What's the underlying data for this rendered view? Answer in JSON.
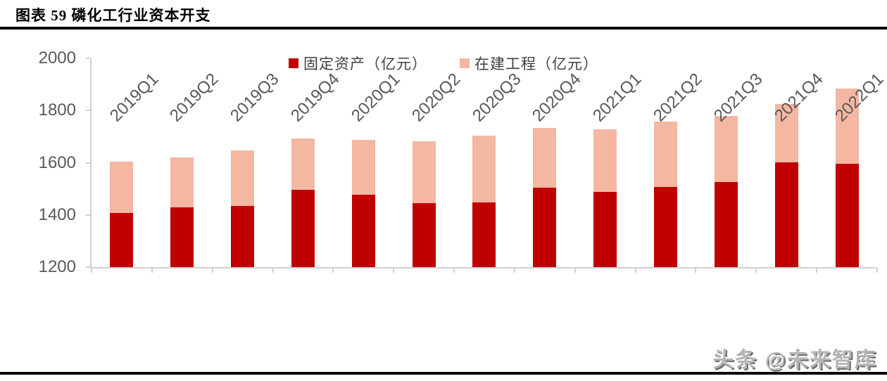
{
  "header": {
    "title": "图表 59 磷化工行业资本开支"
  },
  "watermark": "头条 @未来智库",
  "colors": {
    "fixed_assets": "#c00000",
    "construction_in_progress": "#f3b7a2",
    "axis_line": "#d0d0d0",
    "tick_label": "#595959",
    "legend_text": "#404040",
    "rule": "#0a0a0a"
  },
  "chart_data": {
    "type": "bar",
    "stacked": true,
    "title": "磷化工行业资本开支",
    "xlabel": "",
    "ylabel": "",
    "ylim": [
      1200,
      2000
    ],
    "yticks": [
      2000,
      1800,
      1600,
      1400,
      1200
    ],
    "grid": false,
    "legend_position": "top-center",
    "categories": [
      "2019Q1",
      "2019Q2",
      "2019Q3",
      "2019Q4",
      "2020Q1",
      "2020Q2",
      "2020Q3",
      "2020Q4",
      "2021Q1",
      "2021Q2",
      "2021Q3",
      "2021Q4",
      "2022Q1"
    ],
    "series": [
      {
        "name": "固定资产（亿元）",
        "color": "#c00000",
        "role": "base",
        "values": [
          1407,
          1428,
          1435,
          1497,
          1477,
          1446,
          1448,
          1505,
          1489,
          1507,
          1525,
          1601,
          1597
        ]
      },
      {
        "name": "在建工程（亿元）",
        "color": "#f3b7a2",
        "role": "stacked-on-top",
        "values": [
          198,
          192,
          212,
          196,
          210,
          237,
          257,
          228,
          240,
          250,
          255,
          225,
          288
        ]
      }
    ],
    "stack_totals": [
      1605,
      1620,
      1647,
      1693,
      1687,
      1683,
      1705,
      1733,
      1729,
      1757,
      1780,
      1826,
      1885
    ]
  }
}
